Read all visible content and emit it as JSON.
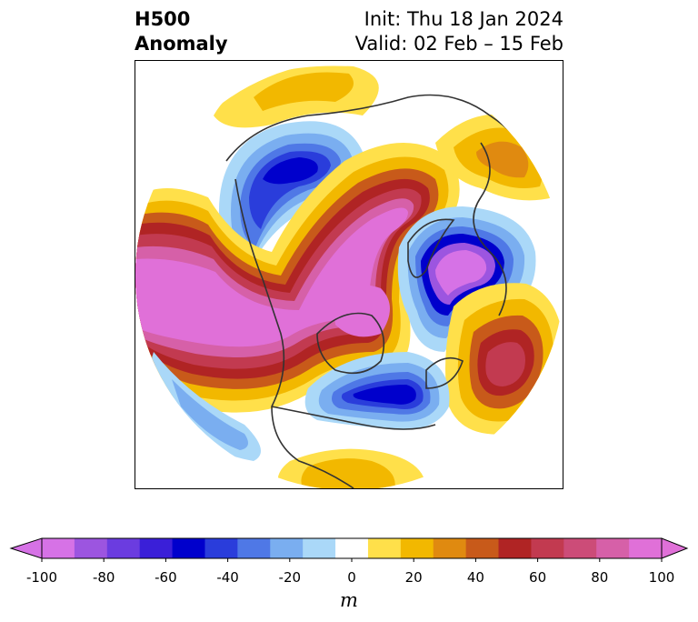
{
  "header": {
    "title_line1": "H500",
    "title_line2": "Anomaly",
    "init_text": "Init: Thu 18 Jan 2024",
    "valid_text": "Valid: 02 Feb – 15 Feb"
  },
  "colorbar": {
    "unit": "m",
    "tick_labels": [
      "-100",
      "-80",
      "-60",
      "-40",
      "-20",
      "0",
      "20",
      "40",
      "60",
      "80",
      "100"
    ],
    "levels": [
      -100,
      -90,
      -80,
      -70,
      -60,
      -50,
      -40,
      -30,
      -20,
      -10,
      10,
      20,
      30,
      40,
      50,
      60,
      70,
      80,
      90,
      100
    ],
    "colors": [
      "#d672e6",
      "#9c55e0",
      "#6b3ce0",
      "#3a1fd8",
      "#0000cc",
      "#2a3ddb",
      "#4f78e6",
      "#7aaef0",
      "#aad8f8",
      "#ffffff",
      "#ffe04a",
      "#f2b800",
      "#e08a10",
      "#c85a1a",
      "#b02424",
      "#c23a50",
      "#cc4c78",
      "#d660a8",
      "#e070d8"
    ],
    "under_color": "#d672e6",
    "over_color": "#e070d8"
  },
  "map": {
    "projection": "north-polar-stereographic",
    "field": "500 hPa geopotential height anomaly",
    "features": [
      "positive anomaly over Arctic and Alaska",
      "negative anomaly over Siberia",
      "negative anomaly over Scandinavia",
      "negative anomaly over eastern North America",
      "positive anomaly over North Atlantic"
    ]
  }
}
